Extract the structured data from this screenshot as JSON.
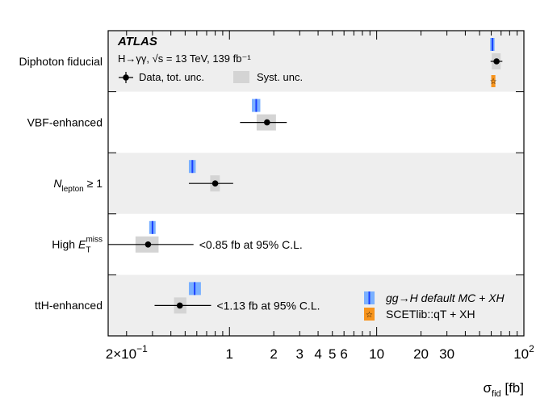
{
  "chart_data": {
    "type": "scatter",
    "x_scale": "log",
    "xlim": [
      0.15,
      100
    ],
    "title": "ATLAS",
    "subtitle_1": "H→γγ, √s = 13 TeV, 139 fb⁻¹",
    "xlabel": "σ_fid [fb]",
    "xlabel_parts": {
      "sym": "σ",
      "sub": "fid",
      "unit": "[fb]"
    },
    "x_tick_labels": [
      {
        "v": 0.2,
        "base": "2×10",
        "exp": "−1"
      },
      {
        "v": 1,
        "text": "1"
      },
      {
        "v": 2,
        "text": "2"
      },
      {
        "v": 3,
        "text": "3"
      },
      {
        "v": 4,
        "text": "4"
      },
      {
        "v": 5,
        "text": "5"
      },
      {
        "v": 6,
        "text": "6"
      },
      {
        "v": 10,
        "text": "10"
      },
      {
        "v": 20,
        "text": "20"
      },
      {
        "v": 30,
        "text": "30"
      },
      {
        "v": 100,
        "base": "10",
        "exp": "2"
      }
    ],
    "categories": [
      {
        "label": "Diphoton fiducial",
        "data": 65.2,
        "tot_lo": 59.4,
        "tot_hi": 71.4,
        "syst_lo": 60.5,
        "syst_hi": 69.5,
        "mc": 61.2,
        "mc_band": [
          59.0,
          63.2
        ],
        "scet": 62.0,
        "scet_band": [
          60.0,
          64.0
        ],
        "note": ""
      },
      {
        "label": "VBF-enhanced",
        "data": 1.8,
        "tot_lo": 1.18,
        "tot_hi": 2.45,
        "syst_lo": 1.53,
        "syst_hi": 2.07,
        "mc": 1.52,
        "mc_band": [
          1.42,
          1.62
        ],
        "note": ""
      },
      {
        "label_base": "N",
        "label_sub": "lepton",
        "label_rest": " ≥ 1",
        "data": 0.8,
        "tot_lo": 0.53,
        "tot_hi": 1.06,
        "syst_lo": 0.74,
        "syst_hi": 0.86,
        "mc": 0.56,
        "mc_band": [
          0.53,
          0.59
        ],
        "note": ""
      },
      {
        "label_pre": "High ",
        "label_base": "E",
        "label_sub": "T",
        "label_sup": "miss",
        "data": 0.28,
        "tot_lo": 0.15,
        "tot_hi": 0.57,
        "syst_lo": 0.23,
        "syst_hi": 0.33,
        "mc": 0.3,
        "mc_band": [
          0.285,
          0.315
        ],
        "note": "<0.85 fb at 95% C.L."
      },
      {
        "label": "ttH-enhanced",
        "data": 0.46,
        "tot_lo": 0.31,
        "tot_hi": 0.75,
        "syst_lo": 0.42,
        "syst_hi": 0.51,
        "mc": 0.58,
        "mc_band": [
          0.53,
          0.64
        ],
        "note": "<1.13 fb at 95% C.L."
      }
    ],
    "legend": {
      "data": "Data, tot. unc.",
      "syst": "Syst. unc.",
      "mc_label": "gg→H default MC + XH",
      "scet_label": "SCETlib::qT + XH"
    },
    "colors": {
      "band_shade": "#eeeeee",
      "syst": "#d4d4d4",
      "mc_fill": "#7ab0ff",
      "mc_line": "#1a3fff",
      "scet_fill": "#f7941d"
    }
  }
}
